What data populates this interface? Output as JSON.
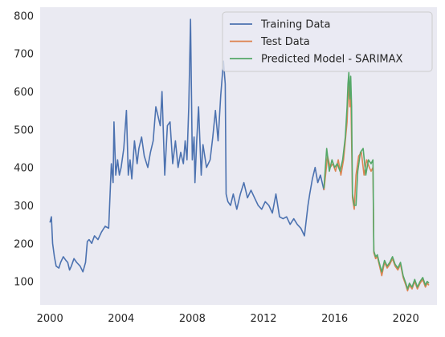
{
  "chart_data": {
    "type": "line",
    "title": "",
    "xlabel": "",
    "ylabel": "",
    "xlim": [
      1999.45,
      2021.75
    ],
    "ylim": [
      38,
      822
    ],
    "x_ticks": [
      2000,
      2004,
      2008,
      2012,
      2016,
      2020
    ],
    "x_tick_labels": [
      "2000",
      "2004",
      "2008",
      "2012",
      "2016",
      "2020"
    ],
    "y_ticks": [
      100,
      200,
      300,
      400,
      500,
      600,
      700,
      800
    ],
    "y_tick_labels": [
      "100",
      "200",
      "300",
      "400",
      "500",
      "600",
      "700",
      "800"
    ],
    "grid": false,
    "background": "#eaeaf2",
    "legend": {
      "position": "top-right"
    },
    "series": [
      {
        "name": "Training Data",
        "color": "#4c72b0",
        "x": [
          2000.0,
          2000.08,
          2000.15,
          2000.25,
          2000.35,
          2000.5,
          2000.6,
          2000.75,
          2000.9,
          2001.0,
          2001.1,
          2001.2,
          2001.35,
          2001.5,
          2001.7,
          2001.85,
          2002.0,
          2002.1,
          2002.2,
          2002.35,
          2002.5,
          2002.7,
          2002.9,
          2003.1,
          2003.3,
          2003.45,
          2003.55,
          2003.6,
          2003.7,
          2003.8,
          2003.9,
          2004.0,
          2004.15,
          2004.3,
          2004.4,
          2004.5,
          2004.6,
          2004.75,
          2004.9,
          2005.0,
          2005.15,
          2005.3,
          2005.5,
          2005.65,
          2005.8,
          2005.95,
          2006.05,
          2006.2,
          2006.3,
          2006.45,
          2006.6,
          2006.75,
          2006.9,
          2007.05,
          2007.2,
          2007.35,
          2007.5,
          2007.6,
          2007.7,
          2007.8,
          2007.9,
          2008.0,
          2008.1,
          2008.15,
          2008.25,
          2008.35,
          2008.5,
          2008.6,
          2008.7,
          2008.8,
          2009.0,
          2009.15,
          2009.3,
          2009.45,
          2009.6,
          2009.75,
          2009.85,
          2009.9,
          2010.0,
          2010.15,
          2010.3,
          2010.5,
          2010.7,
          2010.9,
          2011.1,
          2011.3,
          2011.5,
          2011.7,
          2011.9,
          2012.1,
          2012.3,
          2012.5,
          2012.7,
          2012.9,
          2013.1,
          2013.3,
          2013.5,
          2013.7,
          2013.9,
          2014.1,
          2014.3,
          2014.5,
          2014.6,
          2014.75,
          2014.9,
          2015.05,
          2015.2,
          2015.4
        ],
        "y": [
          255,
          270,
          200,
          165,
          140,
          135,
          150,
          165,
          155,
          150,
          130,
          140,
          160,
          150,
          140,
          125,
          150,
          205,
          210,
          200,
          220,
          210,
          230,
          245,
          240,
          410,
          360,
          520,
          380,
          420,
          380,
          400,
          450,
          550,
          380,
          420,
          370,
          470,
          410,
          450,
          480,
          430,
          400,
          440,
          470,
          560,
          540,
          510,
          600,
          380,
          510,
          520,
          410,
          470,
          400,
          440,
          410,
          470,
          420,
          560,
          790,
          420,
          480,
          360,
          470,
          560,
          380,
          460,
          430,
          400,
          420,
          480,
          550,
          470,
          590,
          680,
          620,
          330,
          310,
          300,
          330,
          290,
          330,
          360,
          320,
          340,
          320,
          300,
          290,
          310,
          300,
          280,
          330,
          270,
          265,
          270,
          250,
          265,
          250,
          240,
          220,
          300,
          330,
          370,
          400,
          360,
          380,
          340
        ]
      },
      {
        "name": "Test Data",
        "color": "#dd8452",
        "x": [
          2015.4,
          2015.6,
          2015.75,
          2015.9,
          2016.05,
          2016.2,
          2016.35,
          2016.5,
          2016.6,
          2016.7,
          2016.75,
          2016.8,
          2016.85,
          2016.9,
          2017.0,
          2017.1,
          2017.2,
          2017.35,
          2017.5,
          2017.65,
          2017.8,
          2017.95,
          2018.05,
          2018.15,
          2018.2,
          2018.3,
          2018.4,
          2018.5,
          2018.65,
          2018.8,
          2018.95,
          2019.1,
          2019.25,
          2019.4,
          2019.55,
          2019.7,
          2019.85,
          2020.0,
          2020.1,
          2020.2,
          2020.35,
          2020.5,
          2020.65,
          2020.8,
          2020.95,
          2021.1,
          2021.2,
          2021.3
        ],
        "y": [
          340,
          430,
          400,
          410,
          390,
          420,
          380,
          420,
          470,
          520,
          580,
          630,
          560,
          620,
          320,
          290,
          380,
          430,
          440,
          380,
          420,
          400,
          390,
          400,
          175,
          160,
          165,
          145,
          115,
          150,
          135,
          145,
          160,
          140,
          130,
          145,
          110,
          90,
          75,
          90,
          80,
          100,
          80,
          95,
          105,
          85,
          95,
          90
        ]
      },
      {
        "name": "Predicted Model - SARIMAX",
        "color": "#55a868",
        "x": [
          2015.4,
          2015.55,
          2015.7,
          2015.85,
          2016.0,
          2016.15,
          2016.3,
          2016.45,
          2016.6,
          2016.7,
          2016.75,
          2016.8,
          2016.85,
          2016.9,
          2016.95,
          2017.0,
          2017.1,
          2017.2,
          2017.3,
          2017.45,
          2017.6,
          2017.75,
          2017.9,
          2018.05,
          2018.15,
          2018.2,
          2018.3,
          2018.4,
          2018.5,
          2018.65,
          2018.8,
          2018.95,
          2019.1,
          2019.25,
          2019.4,
          2019.55,
          2019.7,
          2019.85,
          2020.0,
          2020.1,
          2020.2,
          2020.35,
          2020.5,
          2020.65,
          2020.8,
          2020.95,
          2021.1,
          2021.2,
          2021.3
        ],
        "y": [
          345,
          450,
          390,
          420,
          400,
          410,
          390,
          420,
          480,
          560,
          620,
          650,
          580,
          640,
          560,
          330,
          300,
          300,
          390,
          440,
          450,
          380,
          420,
          410,
          420,
          180,
          165,
          170,
          150,
          125,
          155,
          140,
          150,
          165,
          145,
          135,
          150,
          115,
          95,
          80,
          95,
          85,
          105,
          85,
          100,
          110,
          90,
          100,
          95
        ]
      }
    ]
  }
}
